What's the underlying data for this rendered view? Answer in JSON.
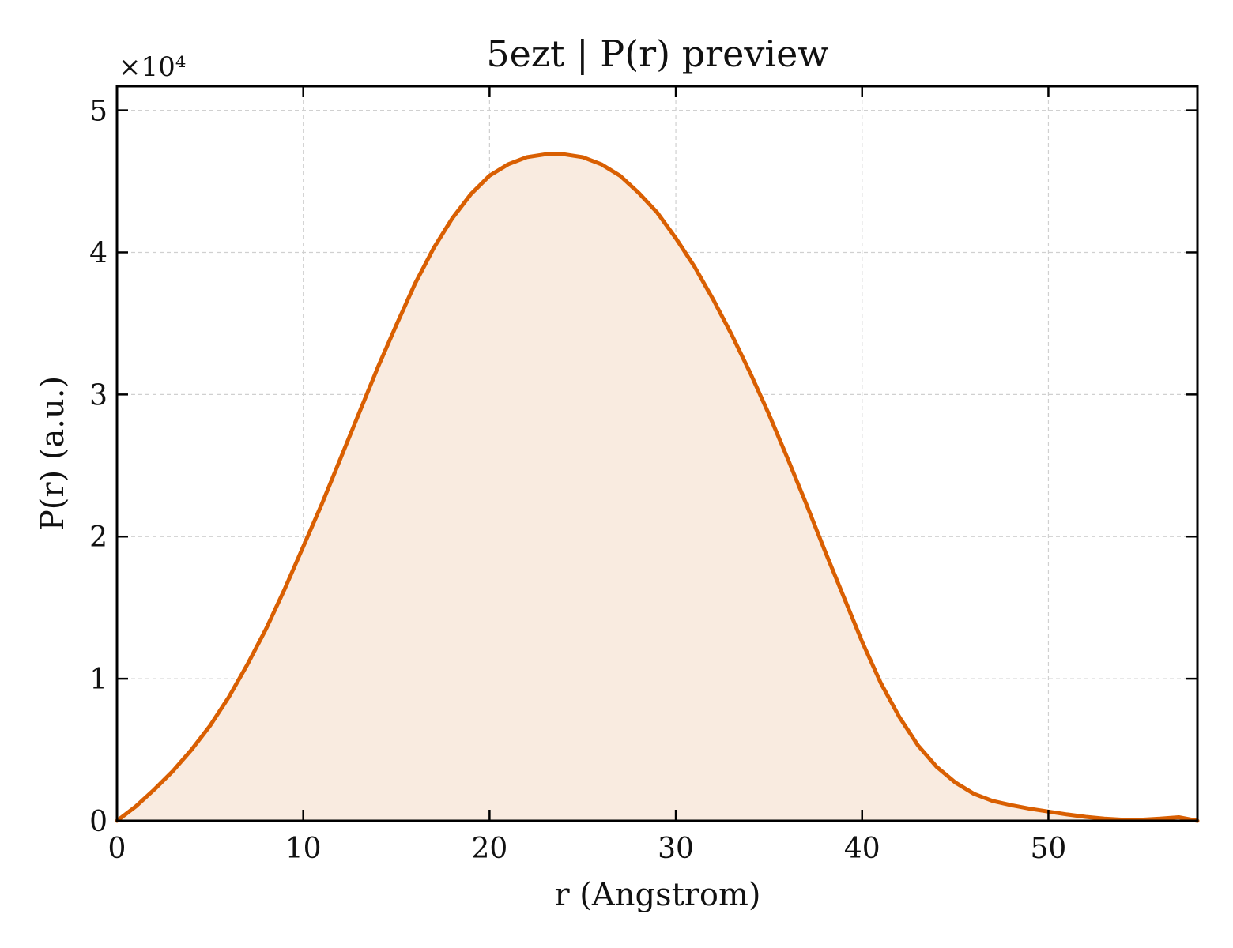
{
  "chart_data": {
    "type": "area",
    "title": "5ezt | P(r) preview",
    "xlabel": "r (Angstrom)",
    "ylabel": "P(r) (a.u.)",
    "y_offset_label": "×10⁴",
    "y_scale": 10000,
    "xlim": [
      0,
      58
    ],
    "ylim": [
      0,
      51700
    ],
    "xticks": [
      0,
      10,
      20,
      30,
      40,
      50
    ],
    "xtick_labels": [
      "0",
      "10",
      "20",
      "30",
      "40",
      "50"
    ],
    "yticks": [
      0,
      10000,
      20000,
      30000,
      40000,
      50000
    ],
    "ytick_labels": [
      "0",
      "1",
      "2",
      "3",
      "4",
      "5"
    ],
    "grid": true,
    "line_color": "#d95f02",
    "fill_color": "#f9ebe0",
    "series": [
      {
        "x": [
          0,
          1,
          2,
          3,
          4,
          5,
          6,
          7,
          8,
          9,
          10,
          11,
          12,
          13,
          14,
          15,
          16,
          17,
          18,
          19,
          20,
          21,
          22,
          23,
          24,
          25,
          26,
          27,
          28,
          29,
          30,
          31,
          32,
          33,
          34,
          35,
          36,
          37,
          38,
          39,
          40,
          41,
          42,
          43,
          44,
          45,
          46,
          47,
          48,
          49,
          50,
          51,
          52,
          53,
          54,
          55,
          56,
          57,
          58
        ],
        "y": [
          0,
          1000,
          2200,
          3500,
          5000,
          6700,
          8700,
          11000,
          13500,
          16300,
          19300,
          22300,
          25500,
          28700,
          31900,
          34900,
          37800,
          40300,
          42400,
          44100,
          45400,
          46200,
          46700,
          46900,
          46900,
          46700,
          46200,
          45400,
          44200,
          42800,
          41000,
          39000,
          36700,
          34200,
          31500,
          28600,
          25500,
          22300,
          19000,
          15800,
          12600,
          9700,
          7300,
          5300,
          3800,
          2700,
          1900,
          1400,
          1100,
          850,
          650,
          450,
          280,
          150,
          80,
          80,
          150,
          250,
          0
        ]
      }
    ]
  }
}
